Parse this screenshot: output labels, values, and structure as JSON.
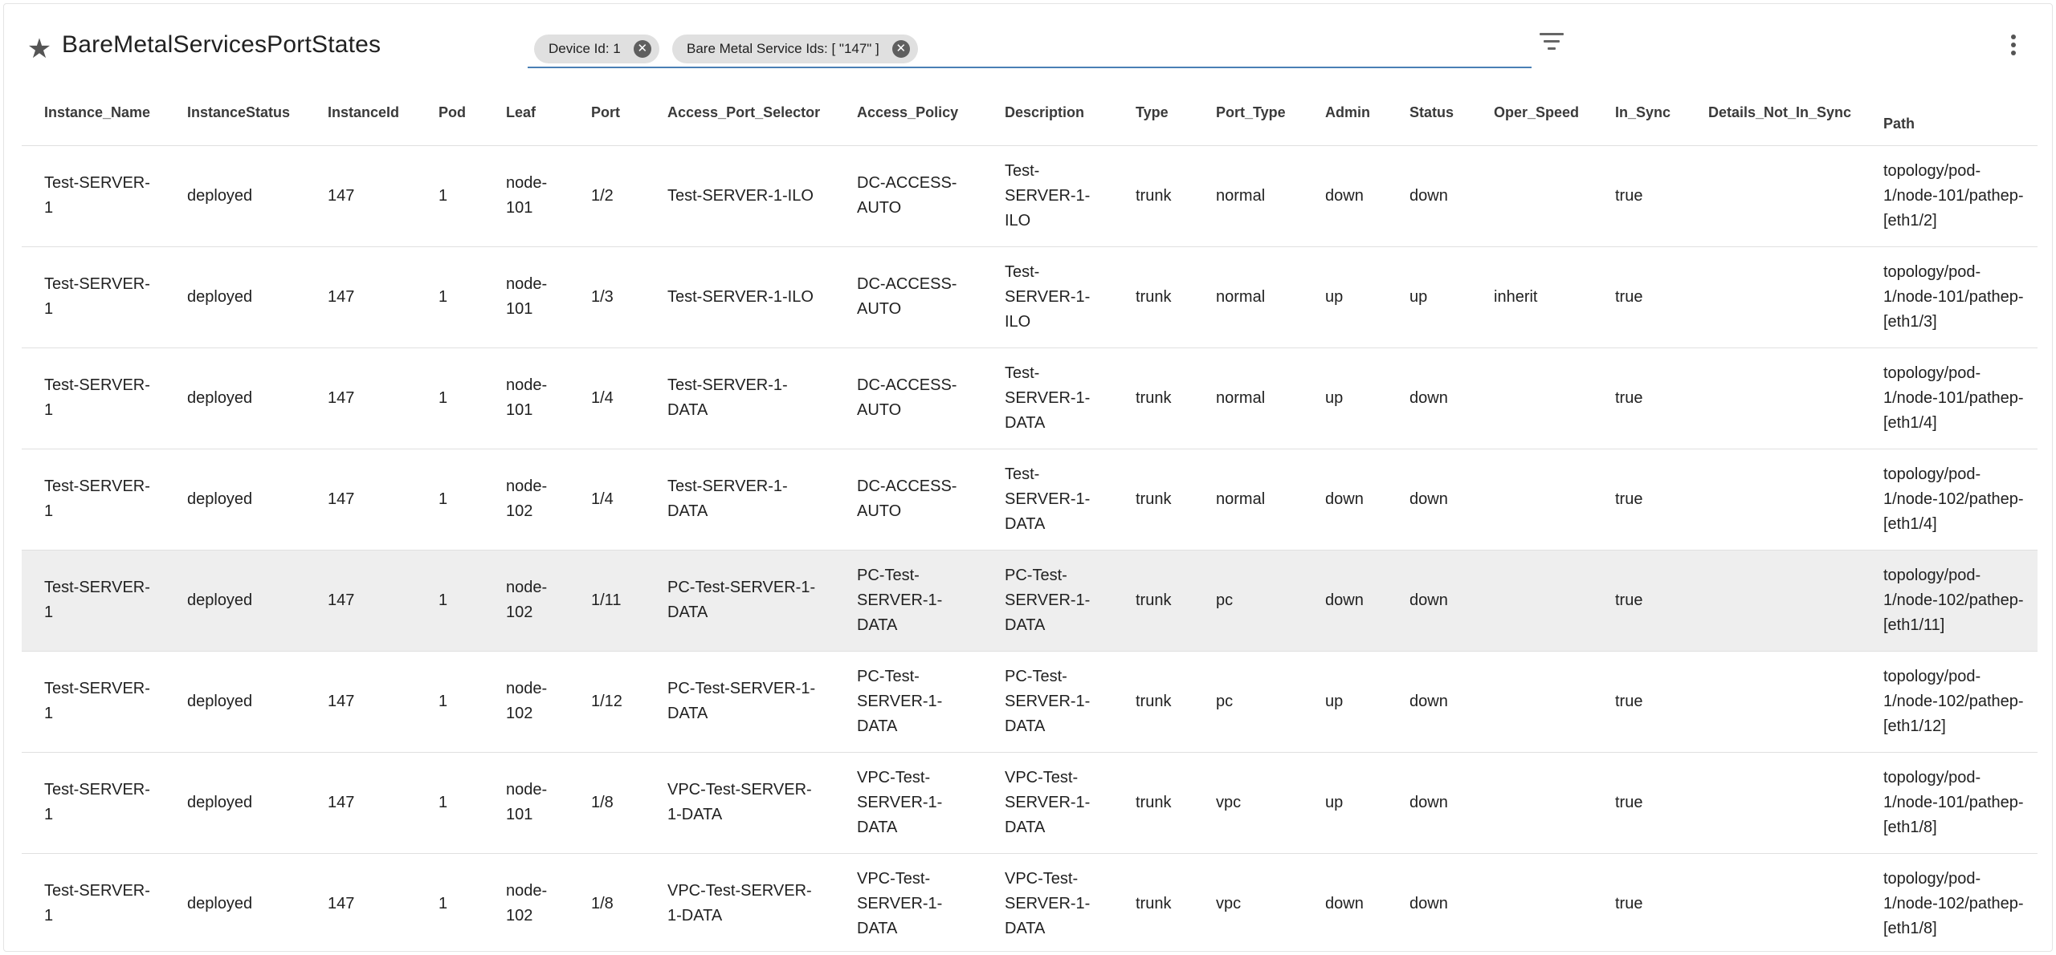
{
  "header": {
    "title": "BareMetalServicesPortStates",
    "star_icon": "star-icon",
    "filter_icon": "filter-icon",
    "more_icon": "more-vert-icon"
  },
  "filters": [
    {
      "label": "Device Id: 1"
    },
    {
      "label": "Bare Metal Service Ids: [ \"147\" ]"
    }
  ],
  "table": {
    "columns": [
      "Instance_Name",
      "InstanceStatus",
      "InstanceId",
      "Pod",
      "Leaf",
      "Port",
      "Access_Port_Selector",
      "Access_Policy",
      "Description",
      "Type",
      "Port_Type",
      "Admin",
      "Status",
      "Oper_Speed",
      "In_Sync",
      "Details_Not_In_Sync",
      "Path"
    ],
    "rows": [
      [
        "Test-SERVER-1",
        "deployed",
        "147",
        "1",
        "node-101",
        "1/2",
        "Test-SERVER-1-ILO",
        "DC-ACCESS-AUTO",
        "Test-SERVER-1-ILO",
        "trunk",
        "normal",
        "down",
        "down",
        "",
        "true",
        "",
        "topology/pod-1/node-101/pathep-[eth1/2]"
      ],
      [
        "Test-SERVER-1",
        "deployed",
        "147",
        "1",
        "node-101",
        "1/3",
        "Test-SERVER-1-ILO",
        "DC-ACCESS-AUTO",
        "Test-SERVER-1-ILO",
        "trunk",
        "normal",
        "up",
        "up",
        "inherit",
        "true",
        "",
        "topology/pod-1/node-101/pathep-[eth1/3]"
      ],
      [
        "Test-SERVER-1",
        "deployed",
        "147",
        "1",
        "node-101",
        "1/4",
        "Test-SERVER-1-DATA",
        "DC-ACCESS-AUTO",
        "Test-SERVER-1-DATA",
        "trunk",
        "normal",
        "up",
        "down",
        "",
        "true",
        "",
        "topology/pod-1/node-101/pathep-[eth1/4]"
      ],
      [
        "Test-SERVER-1",
        "deployed",
        "147",
        "1",
        "node-102",
        "1/4",
        "Test-SERVER-1-DATA",
        "DC-ACCESS-AUTO",
        "Test-SERVER-1-DATA",
        "trunk",
        "normal",
        "down",
        "down",
        "",
        "true",
        "",
        "topology/pod-1/node-102/pathep-[eth1/4]"
      ],
      [
        "Test-SERVER-1",
        "deployed",
        "147",
        "1",
        "node-102",
        "1/11",
        "PC-Test-SERVER-1-DATA",
        "PC-Test-SERVER-1-DATA",
        "PC-Test-SERVER-1-DATA",
        "trunk",
        "pc",
        "down",
        "down",
        "",
        "true",
        "",
        "topology/pod-1/node-102/pathep-[eth1/11]"
      ],
      [
        "Test-SERVER-1",
        "deployed",
        "147",
        "1",
        "node-102",
        "1/12",
        "PC-Test-SERVER-1-DATA",
        "PC-Test-SERVER-1-DATA",
        "PC-Test-SERVER-1-DATA",
        "trunk",
        "pc",
        "up",
        "down",
        "",
        "true",
        "",
        "topology/pod-1/node-102/pathep-[eth1/12]"
      ],
      [
        "Test-SERVER-1",
        "deployed",
        "147",
        "1",
        "node-101",
        "1/8",
        "VPC-Test-SERVER-1-DATA",
        "VPC-Test-SERVER-1-DATA",
        "VPC-Test-SERVER-1-DATA",
        "trunk",
        "vpc",
        "up",
        "down",
        "",
        "true",
        "",
        "topology/pod-1/node-101/pathep-[eth1/8]"
      ],
      [
        "Test-SERVER-1",
        "deployed",
        "147",
        "1",
        "node-102",
        "1/8",
        "VPC-Test-SERVER-1-DATA",
        "VPC-Test-SERVER-1-DATA",
        "VPC-Test-SERVER-1-DATA",
        "trunk",
        "vpc",
        "down",
        "down",
        "",
        "true",
        "",
        "topology/pod-1/node-102/pathep-[eth1/8]"
      ]
    ]
  }
}
